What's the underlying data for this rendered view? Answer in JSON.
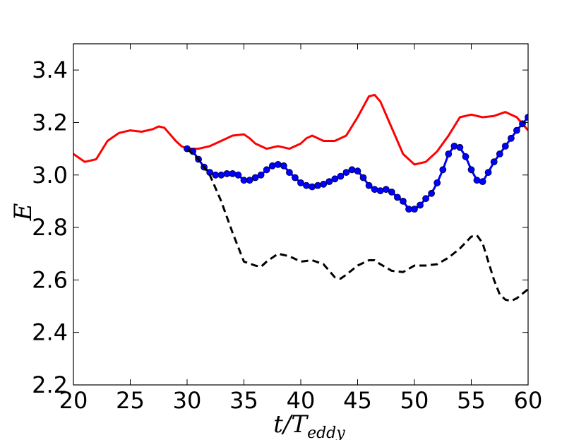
{
  "chart_data": {
    "type": "line",
    "xlabel": "t/T",
    "xlabel_subscript": "eddy",
    "ylabel": "E",
    "xlim": [
      20,
      60
    ],
    "ylim": [
      2.2,
      3.5
    ],
    "xticks": [
      20,
      25,
      30,
      35,
      40,
      45,
      50,
      55,
      60
    ],
    "yticks": [
      2.2,
      2.4,
      2.6,
      2.8,
      3.0,
      3.2,
      3.4
    ],
    "grid": false,
    "series": [
      {
        "color": "#ff0000",
        "style": "solid",
        "markers": false,
        "x": [
          20,
          21,
          22,
          23,
          24,
          25,
          26,
          27,
          27.5,
          28,
          29,
          29.5,
          30,
          31,
          32,
          33,
          34,
          35,
          35.5,
          36,
          37,
          38,
          39,
          40,
          40.5,
          41,
          42,
          43,
          44,
          45,
          46,
          46.5,
          47,
          48,
          49,
          50,
          51,
          52,
          53,
          54,
          55,
          56,
          57,
          58,
          59,
          60
        ],
        "y": [
          3.08,
          3.05,
          3.06,
          3.13,
          3.16,
          3.17,
          3.165,
          3.175,
          3.185,
          3.18,
          3.13,
          3.11,
          3.1,
          3.1,
          3.11,
          3.13,
          3.15,
          3.155,
          3.14,
          3.12,
          3.1,
          3.11,
          3.1,
          3.12,
          3.14,
          3.15,
          3.13,
          3.13,
          3.15,
          3.22,
          3.3,
          3.305,
          3.28,
          3.18,
          3.08,
          3.04,
          3.05,
          3.09,
          3.15,
          3.22,
          3.23,
          3.22,
          3.225,
          3.24,
          3.22,
          3.17
        ]
      },
      {
        "color": "#0000ff",
        "style": "solid",
        "markers": true,
        "x": [
          30,
          30.5,
          31,
          31.5,
          32,
          32.5,
          33,
          33.5,
          34,
          34.5,
          35,
          35.5,
          36,
          36.5,
          37,
          37.5,
          38,
          38.5,
          39,
          39.5,
          40,
          40.5,
          41,
          41.5,
          42,
          42.5,
          43,
          43.5,
          44,
          44.5,
          45,
          45.5,
          46,
          46.5,
          47,
          47.5,
          48,
          48.5,
          49,
          49.5,
          50,
          50.5,
          51,
          51.5,
          52,
          52.5,
          53,
          53.5,
          54,
          54.5,
          55,
          55.5,
          56,
          56.5,
          57,
          57.5,
          58,
          58.5,
          59,
          59.5,
          60
        ],
        "y": [
          3.1,
          3.09,
          3.06,
          3.03,
          3.01,
          3.0,
          3.0,
          3.005,
          3.005,
          3.0,
          2.98,
          2.98,
          2.99,
          3.0,
          3.02,
          3.035,
          3.04,
          3.035,
          3.01,
          2.99,
          2.97,
          2.96,
          2.955,
          2.96,
          2.965,
          2.975,
          2.985,
          2.995,
          3.01,
          3.02,
          3.015,
          2.99,
          2.96,
          2.945,
          2.94,
          2.945,
          2.935,
          2.915,
          2.9,
          2.87,
          2.87,
          2.885,
          2.91,
          2.93,
          2.97,
          3.02,
          3.08,
          3.11,
          3.105,
          3.07,
          3.02,
          2.98,
          2.975,
          3.01,
          3.05,
          3.08,
          3.11,
          3.14,
          3.17,
          3.195,
          3.22
        ]
      },
      {
        "color": "#000000",
        "style": "dashed",
        "markers": false,
        "x": [
          30,
          31,
          32,
          33,
          34,
          35,
          36,
          36.5,
          37,
          38,
          39,
          40,
          41,
          42,
          43,
          43.5,
          44,
          45,
          46,
          46.5,
          47,
          48,
          49,
          50,
          51,
          52,
          53,
          54,
          55,
          55.5,
          56,
          57,
          57.5,
          58,
          58.5,
          59,
          60
        ],
        "y": [
          3.1,
          3.06,
          3.0,
          2.9,
          2.78,
          2.67,
          2.655,
          2.65,
          2.67,
          2.7,
          2.69,
          2.67,
          2.675,
          2.66,
          2.61,
          2.605,
          2.62,
          2.655,
          2.675,
          2.675,
          2.66,
          2.635,
          2.63,
          2.655,
          2.655,
          2.66,
          2.685,
          2.72,
          2.765,
          2.77,
          2.74,
          2.6,
          2.545,
          2.525,
          2.52,
          2.53,
          2.565
        ]
      }
    ]
  }
}
